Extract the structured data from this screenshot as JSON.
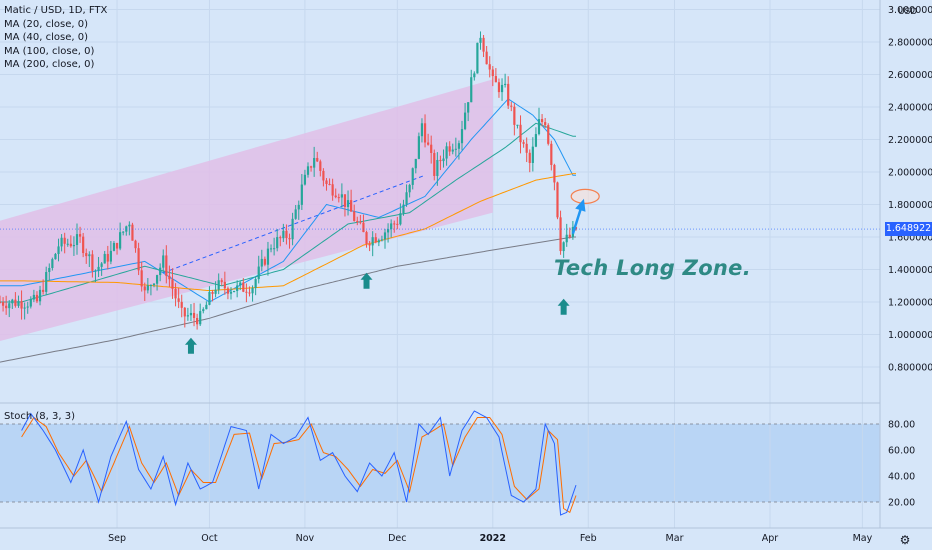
{
  "symbol_title": "Matic / USD, 1D, FTX",
  "indicators": [
    "MA (20, close, 0)",
    "MA (40, close, 0)",
    "MA (100, close, 0)",
    "MA (200, close, 0)"
  ],
  "stoch_label": "Stoch (8, 3, 3)",
  "currency": "USD",
  "annotation": "Tech Long Zone.",
  "current_price_label": "1.648922",
  "colors": {
    "up": "#26a69a",
    "down": "#ef5350",
    "ma20": "#2196f3",
    "ma40": "#26a69a",
    "ma100": "#ff9800",
    "ma200": "#787b86",
    "stoch_k": "#2962ff",
    "stoch_d": "#ff6d00",
    "channel": "#e1bee7",
    "arrow": "#1a8c8c",
    "ann_color": "#2f8a85"
  },
  "chart_data": [
    {
      "type": "candlestick",
      "title": "Matic / USD, 1D, FTX",
      "ylabel": "USD",
      "ylim": [
        0.65,
        3.05
      ],
      "y_ticks": [
        "3.000000",
        "2.800000",
        "2.600000",
        "2.400000",
        "2.200000",
        "2.000000",
        "1.800000",
        "1.600000",
        "1.400000",
        "1.200000",
        "1.000000",
        "0.800000"
      ],
      "x_ticks": [
        "Sep",
        "Oct",
        "Nov",
        "Dec",
        "2022",
        "Feb",
        "Mar",
        "Apr",
        "May"
      ],
      "grid": true,
      "last_price": 1.648922,
      "price_anchors": [
        {
          "date": "2021-08-06",
          "close": 1.2
        },
        {
          "date": "2021-08-13",
          "close": 1.55
        },
        {
          "date": "2021-08-20",
          "close": 1.58
        },
        {
          "date": "2021-08-25",
          "close": 1.4
        },
        {
          "date": "2021-08-30",
          "close": 1.5
        },
        {
          "date": "2021-09-05",
          "close": 1.7
        },
        {
          "date": "2021-09-10",
          "close": 1.25
        },
        {
          "date": "2021-09-16",
          "close": 1.45
        },
        {
          "date": "2021-09-22",
          "close": 1.12
        },
        {
          "date": "2021-09-28",
          "close": 1.1
        },
        {
          "date": "2021-10-03",
          "close": 1.3
        },
        {
          "date": "2021-10-10",
          "close": 1.28
        },
        {
          "date": "2021-10-15",
          "close": 1.3
        },
        {
          "date": "2021-10-21",
          "close": 1.55
        },
        {
          "date": "2021-10-27",
          "close": 1.62
        },
        {
          "date": "2021-10-31",
          "close": 1.9
        },
        {
          "date": "2021-11-04",
          "close": 2.1
        },
        {
          "date": "2021-11-08",
          "close": 1.92
        },
        {
          "date": "2021-11-12",
          "close": 1.88
        },
        {
          "date": "2021-11-16",
          "close": 1.75
        },
        {
          "date": "2021-11-21",
          "close": 1.58
        },
        {
          "date": "2021-11-26",
          "close": 1.62
        },
        {
          "date": "2021-12-01",
          "close": 1.7
        },
        {
          "date": "2021-12-05",
          "close": 1.9
        },
        {
          "date": "2021-12-09",
          "close": 2.3
        },
        {
          "date": "2021-12-13",
          "close": 2.0
        },
        {
          "date": "2021-12-17",
          "close": 2.15
        },
        {
          "date": "2021-12-21",
          "close": 2.2
        },
        {
          "date": "2021-12-25",
          "close": 2.55
        },
        {
          "date": "2021-12-28",
          "close": 2.85
        },
        {
          "date": "2022-01-01",
          "close": 2.55
        },
        {
          "date": "2022-01-05",
          "close": 2.5
        },
        {
          "date": "2022-01-09",
          "close": 2.25
        },
        {
          "date": "2022-01-13",
          "close": 2.05
        },
        {
          "date": "2022-01-16",
          "close": 2.3
        },
        {
          "date": "2022-01-18",
          "close": 2.32
        },
        {
          "date": "2022-01-21",
          "close": 1.95
        },
        {
          "date": "2022-01-23",
          "close": 1.55
        },
        {
          "date": "2022-01-26",
          "close": 1.6
        },
        {
          "date": "2022-01-28",
          "close": 1.648922
        }
      ],
      "ma_anchors": {
        "MA (20, close, 0)": [
          {
            "date": "2021-08-01",
            "v": 1.3
          },
          {
            "date": "2021-09-10",
            "v": 1.45
          },
          {
            "date": "2021-10-01",
            "v": 1.2
          },
          {
            "date": "2021-10-25",
            "v": 1.45
          },
          {
            "date": "2021-11-08",
            "v": 1.8
          },
          {
            "date": "2021-11-25",
            "v": 1.72
          },
          {
            "date": "2021-12-10",
            "v": 1.85
          },
          {
            "date": "2021-12-25",
            "v": 2.2
          },
          {
            "date": "2022-01-06",
            "v": 2.45
          },
          {
            "date": "2022-01-14",
            "v": 2.35
          },
          {
            "date": "2022-01-21",
            "v": 2.2
          },
          {
            "date": "2022-01-27",
            "v": 1.98
          }
        ],
        "MA (40, close, 0)": [
          {
            "date": "2021-08-01",
            "v": 1.2
          },
          {
            "date": "2021-09-10",
            "v": 1.42
          },
          {
            "date": "2021-10-05",
            "v": 1.3
          },
          {
            "date": "2021-10-25",
            "v": 1.4
          },
          {
            "date": "2021-11-15",
            "v": 1.68
          },
          {
            "date": "2021-12-05",
            "v": 1.75
          },
          {
            "date": "2021-12-20",
            "v": 1.95
          },
          {
            "date": "2022-01-05",
            "v": 2.15
          },
          {
            "date": "2022-01-15",
            "v": 2.3
          },
          {
            "date": "2022-01-27",
            "v": 2.22
          }
        ],
        "MA (100, close, 0)": [
          {
            "date": "2021-08-01",
            "v": 1.33
          },
          {
            "date": "2021-09-01",
            "v": 1.32
          },
          {
            "date": "2021-10-01",
            "v": 1.27
          },
          {
            "date": "2021-10-25",
            "v": 1.3
          },
          {
            "date": "2021-11-20",
            "v": 1.55
          },
          {
            "date": "2021-12-10",
            "v": 1.65
          },
          {
            "date": "2021-12-28",
            "v": 1.82
          },
          {
            "date": "2022-01-15",
            "v": 1.95
          },
          {
            "date": "2022-01-27",
            "v": 1.99
          }
        ],
        "MA (200, close, 0)": [
          {
            "date": "2021-07-25",
            "v": 0.83
          },
          {
            "date": "2021-09-01",
            "v": 0.97
          },
          {
            "date": "2021-10-01",
            "v": 1.1
          },
          {
            "date": "2021-11-01",
            "v": 1.28
          },
          {
            "date": "2021-12-01",
            "v": 1.42
          },
          {
            "date": "2022-01-01",
            "v": 1.52
          },
          {
            "date": "2022-01-27",
            "v": 1.6
          }
        ]
      },
      "channel": {
        "start_date": "2021-07-25",
        "end_date": "2022-01-01",
        "upper_start": 1.7,
        "upper_end": 2.57,
        "lower_start": 0.96,
        "lower_end": 1.75
      },
      "midline": {
        "start_date": "2021-09-16",
        "end_date": "2021-12-10",
        "start": 1.38,
        "end": 1.98
      },
      "highlight_arrows": [
        {
          "date": "2021-09-25",
          "price": 0.98
        },
        {
          "date": "2021-11-21",
          "price": 1.38
        },
        {
          "date": "2022-01-24",
          "price": 1.22
        }
      ],
      "target_marker": {
        "date": "2022-01-31",
        "price": 1.85
      },
      "forecast_arrow": {
        "from_date": "2022-01-27",
        "from_price": 1.62,
        "to_date": "2022-01-30",
        "to_price": 1.8
      }
    },
    {
      "type": "line",
      "title": "Stoch (8, 3, 3)",
      "ylim": [
        5,
        100
      ],
      "y_ticks": [
        "80.00",
        "60.00",
        "40.00",
        "20.00"
      ],
      "levels": [
        80,
        20
      ],
      "k_anchors": [
        {
          "date": "2021-08-01",
          "v": 75
        },
        {
          "date": "2021-08-04",
          "v": 88
        },
        {
          "date": "2021-08-08",
          "v": 75
        },
        {
          "date": "2021-08-12",
          "v": 60
        },
        {
          "date": "2021-08-17",
          "v": 35
        },
        {
          "date": "2021-08-21",
          "v": 60
        },
        {
          "date": "2021-08-26",
          "v": 20
        },
        {
          "date": "2021-08-30",
          "v": 55
        },
        {
          "date": "2021-09-04",
          "v": 82
        },
        {
          "date": "2021-09-08",
          "v": 45
        },
        {
          "date": "2021-09-12",
          "v": 30
        },
        {
          "date": "2021-09-16",
          "v": 55
        },
        {
          "date": "2021-09-20",
          "v": 18
        },
        {
          "date": "2021-09-24",
          "v": 50
        },
        {
          "date": "2021-09-28",
          "v": 30
        },
        {
          "date": "2021-10-02",
          "v": 35
        },
        {
          "date": "2021-10-08",
          "v": 78
        },
        {
          "date": "2021-10-13",
          "v": 75
        },
        {
          "date": "2021-10-17",
          "v": 30
        },
        {
          "date": "2021-10-21",
          "v": 72
        },
        {
          "date": "2021-10-25",
          "v": 65
        },
        {
          "date": "2021-10-29",
          "v": 70
        },
        {
          "date": "2021-11-02",
          "v": 85
        },
        {
          "date": "2021-11-06",
          "v": 52
        },
        {
          "date": "2021-11-10",
          "v": 58
        },
        {
          "date": "2021-11-14",
          "v": 40
        },
        {
          "date": "2021-11-18",
          "v": 28
        },
        {
          "date": "2021-11-22",
          "v": 50
        },
        {
          "date": "2021-11-26",
          "v": 40
        },
        {
          "date": "2021-11-30",
          "v": 58
        },
        {
          "date": "2021-12-04",
          "v": 20
        },
        {
          "date": "2021-12-08",
          "v": 80
        },
        {
          "date": "2021-12-11",
          "v": 72
        },
        {
          "date": "2021-12-15",
          "v": 85
        },
        {
          "date": "2021-12-18",
          "v": 40
        },
        {
          "date": "2021-12-22",
          "v": 75
        },
        {
          "date": "2021-12-26",
          "v": 90
        },
        {
          "date": "2021-12-30",
          "v": 85
        },
        {
          "date": "2022-01-03",
          "v": 70
        },
        {
          "date": "2022-01-07",
          "v": 25
        },
        {
          "date": "2022-01-11",
          "v": 20
        },
        {
          "date": "2022-01-15",
          "v": 30
        },
        {
          "date": "2022-01-18",
          "v": 80
        },
        {
          "date": "2022-01-21",
          "v": 65
        },
        {
          "date": "2022-01-23",
          "v": 10
        },
        {
          "date": "2022-01-25",
          "v": 12
        },
        {
          "date": "2022-01-28",
          "v": 33
        }
      ],
      "d_anchors": [
        {
          "date": "2021-08-01",
          "v": 70
        },
        {
          "date": "2021-08-05",
          "v": 85
        },
        {
          "date": "2021-08-09",
          "v": 78
        },
        {
          "date": "2021-08-13",
          "v": 58
        },
        {
          "date": "2021-08-18",
          "v": 40
        },
        {
          "date": "2021-08-22",
          "v": 52
        },
        {
          "date": "2021-08-27",
          "v": 28
        },
        {
          "date": "2021-08-31",
          "v": 50
        },
        {
          "date": "2021-09-05",
          "v": 78
        },
        {
          "date": "2021-09-09",
          "v": 50
        },
        {
          "date": "2021-09-13",
          "v": 35
        },
        {
          "date": "2021-09-17",
          "v": 50
        },
        {
          "date": "2021-09-21",
          "v": 25
        },
        {
          "date": "2021-09-25",
          "v": 45
        },
        {
          "date": "2021-09-29",
          "v": 35
        },
        {
          "date": "2021-10-03",
          "v": 35
        },
        {
          "date": "2021-10-09",
          "v": 72
        },
        {
          "date": "2021-10-14",
          "v": 73
        },
        {
          "date": "2021-10-18",
          "v": 38
        },
        {
          "date": "2021-10-22",
          "v": 65
        },
        {
          "date": "2021-10-26",
          "v": 66
        },
        {
          "date": "2021-10-30",
          "v": 68
        },
        {
          "date": "2021-11-03",
          "v": 80
        },
        {
          "date": "2021-11-07",
          "v": 58
        },
        {
          "date": "2021-11-11",
          "v": 55
        },
        {
          "date": "2021-11-15",
          "v": 45
        },
        {
          "date": "2021-11-19",
          "v": 32
        },
        {
          "date": "2021-11-23",
          "v": 45
        },
        {
          "date": "2021-11-27",
          "v": 42
        },
        {
          "date": "2021-12-01",
          "v": 52
        },
        {
          "date": "2021-12-05",
          "v": 28
        },
        {
          "date": "2021-12-09",
          "v": 70
        },
        {
          "date": "2021-12-12",
          "v": 74
        },
        {
          "date": "2021-12-16",
          "v": 80
        },
        {
          "date": "2021-12-19",
          "v": 48
        },
        {
          "date": "2021-12-23",
          "v": 70
        },
        {
          "date": "2021-12-27",
          "v": 85
        },
        {
          "date": "2021-12-31",
          "v": 85
        },
        {
          "date": "2022-01-04",
          "v": 72
        },
        {
          "date": "2022-01-08",
          "v": 32
        },
        {
          "date": "2022-01-12",
          "v": 22
        },
        {
          "date": "2022-01-16",
          "v": 30
        },
        {
          "date": "2022-01-19",
          "v": 75
        },
        {
          "date": "2022-01-22",
          "v": 68
        },
        {
          "date": "2022-01-24",
          "v": 15
        },
        {
          "date": "2022-01-26",
          "v": 12
        },
        {
          "date": "2022-01-28",
          "v": 25
        }
      ]
    }
  ]
}
